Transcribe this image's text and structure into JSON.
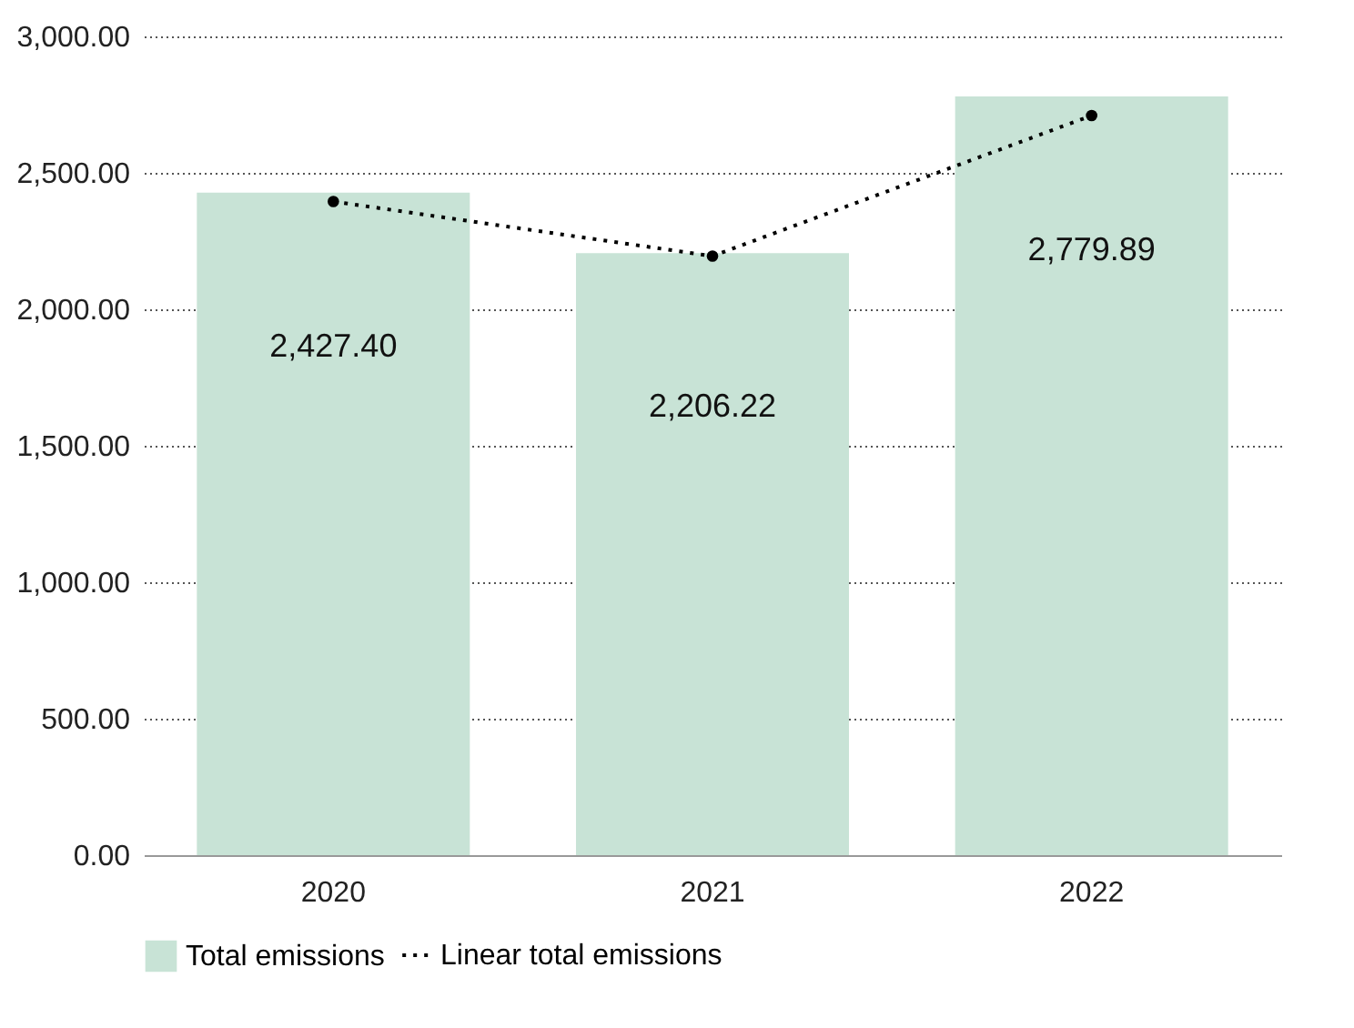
{
  "chart_data": {
    "type": "bar",
    "categories": [
      "2020",
      "2021",
      "2022"
    ],
    "ylim": [
      0,
      3000
    ],
    "yticks": [
      {
        "value": 0,
        "label": "0.00"
      },
      {
        "value": 500,
        "label": "500.00"
      },
      {
        "value": 1000,
        "label": "1,000.00"
      },
      {
        "value": 1500,
        "label": "1,500.00"
      },
      {
        "value": 2000,
        "label": "2,000.00"
      },
      {
        "value": 2500,
        "label": "2,500.00"
      },
      {
        "value": 3000,
        "label": "3,000.00"
      }
    ],
    "grid": "y",
    "legend": "bottom",
    "series": [
      {
        "name": "Total emissions",
        "color": "#c8e3d6",
        "values": [
          2427.4,
          2206.22,
          2779.89
        ],
        "value_labels": [
          "2,427.40",
          "2,206.22",
          "2,779.89"
        ]
      },
      {
        "name": "Linear total emissions",
        "type": "line",
        "color": "#000000",
        "values": [
          2395,
          2195,
          2710
        ],
        "line_style": "dotted",
        "marker": "circle"
      }
    ]
  }
}
